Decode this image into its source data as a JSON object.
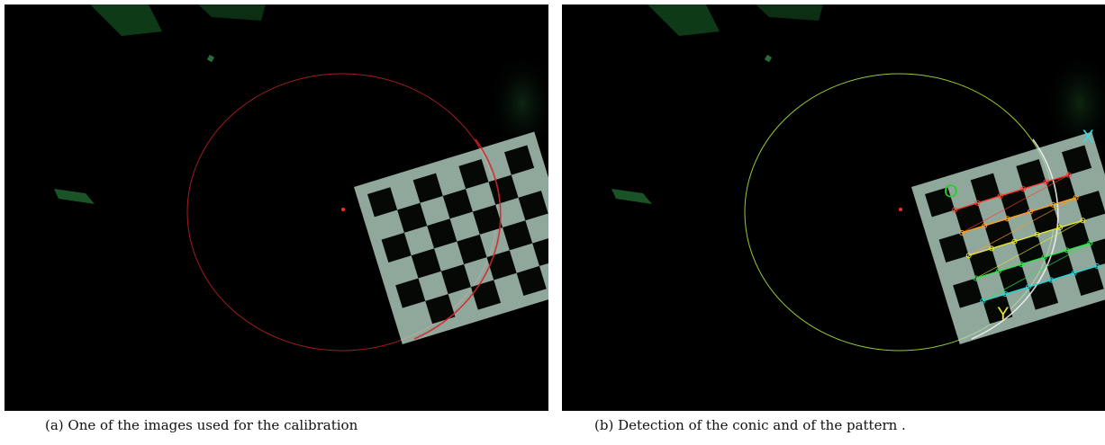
{
  "figure": {
    "panels": [
      {
        "caption": "(a) One of the images used for the calibration",
        "conic_color": "#d7262a",
        "center_color": "#ff2a2a",
        "board_light_color": "#b9d6c8",
        "board_dark_color": "#050805"
      },
      {
        "caption": "(b) Detection of the conic and of the pattern .",
        "conic_color": "#a6e23a",
        "center_color": "#ff2a2a",
        "board_light_color": "#b9d6c8",
        "board_dark_color": "#050805",
        "labels": {
          "origin": "O",
          "x_axis": "X",
          "y_axis": "Y"
        },
        "label_colors": {
          "origin": "#22d022",
          "x_axis": "#39d9e8",
          "y_axis": "#e8e233"
        },
        "row_line_colors": [
          "#ff3b2f",
          "#ff9f1a",
          "#e6e62a",
          "#2fe64a",
          "#22d6d6",
          "#2f6cff",
          "#b23bff",
          "#ff2f6a"
        ]
      }
    ]
  }
}
